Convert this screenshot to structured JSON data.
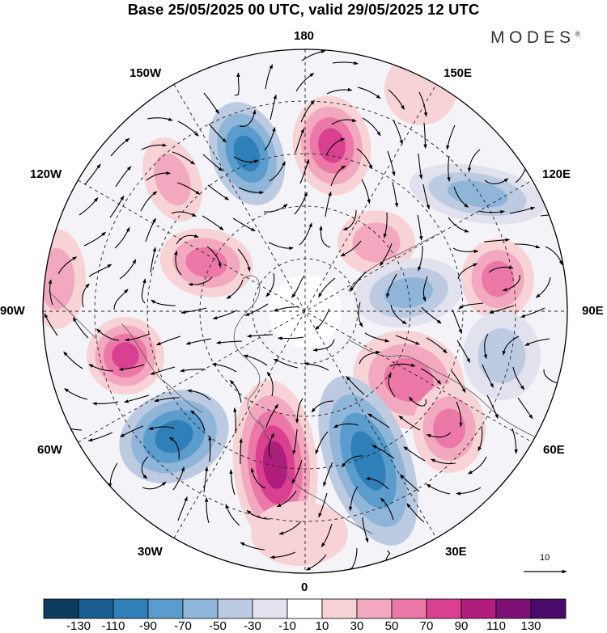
{
  "title": "Base 25/05/2025 00 UTC, valid 29/05/2025 12 UTC",
  "brand": "MODES",
  "brand_mark": "®",
  "longitude_labels": {
    "top": "180",
    "top_left": "150W",
    "top_right": "150E",
    "upper_left": "120W",
    "upper_right": "120E",
    "left": "90W",
    "right": "90E",
    "lower_left": "60W",
    "lower_right": "60E",
    "bottom_left": "30W",
    "bottom_right": "30E",
    "bottom": "0"
  },
  "reference_vector": "10",
  "colorbar": {
    "ticks": [
      "-130",
      "-110",
      "-90",
      "-70",
      "-50",
      "-30",
      "-10",
      "10",
      "30",
      "50",
      "70",
      "90",
      "110",
      "130"
    ],
    "colors": [
      "#0d3c5e",
      "#1a5f92",
      "#2f7fb8",
      "#5a9ccb",
      "#8fb6d9",
      "#bccbe2",
      "#e2e2ef",
      "#ffffff",
      "#f8d3d5",
      "#f2a9bf",
      "#ec78a8",
      "#d9408f",
      "#b01d7d",
      "#7d1175",
      "#4a0a69"
    ]
  }
}
